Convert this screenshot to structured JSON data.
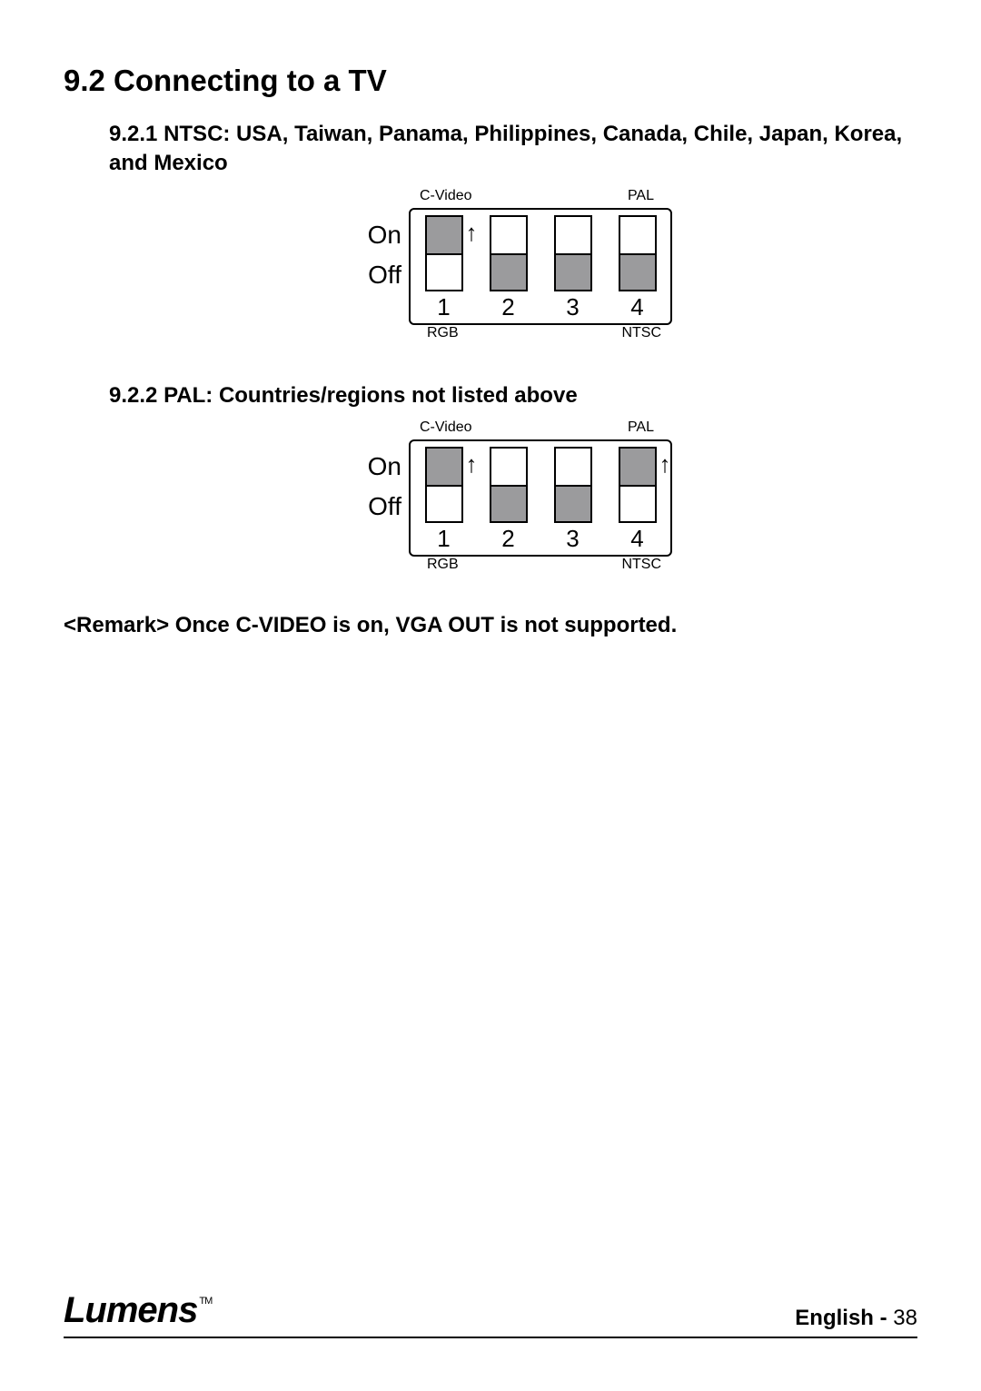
{
  "section": {
    "number": "9.2",
    "title": "Connecting to a TV"
  },
  "subsections": [
    {
      "number": "9.2.1",
      "title": "NTSC: USA, Taiwan, Panama, Philippines, Canada, Chile, Japan, Korea, and Mexico",
      "diagram": {
        "top_left_label": "C-Video",
        "top_right_label": "PAL",
        "side_on": "On",
        "side_off": "Off",
        "bottom_left_label": "RGB",
        "bottom_right_label": "NTSC",
        "switches": [
          {
            "num": "1",
            "position": "on",
            "arrow": true
          },
          {
            "num": "2",
            "position": "off",
            "arrow": false
          },
          {
            "num": "3",
            "position": "off",
            "arrow": false
          },
          {
            "num": "4",
            "position": "off",
            "arrow": false
          }
        ],
        "colors": {
          "fill": "#9b9b9d",
          "border": "#000000",
          "bg": "#ffffff"
        }
      }
    },
    {
      "number": "9.2.2",
      "title": "PAL: Countries/regions not listed above",
      "diagram": {
        "top_left_label": "C-Video",
        "top_right_label": "PAL",
        "side_on": "On",
        "side_off": "Off",
        "bottom_left_label": "RGB",
        "bottom_right_label": "NTSC",
        "switches": [
          {
            "num": "1",
            "position": "on",
            "arrow": true
          },
          {
            "num": "2",
            "position": "off",
            "arrow": false
          },
          {
            "num": "3",
            "position": "off",
            "arrow": false
          },
          {
            "num": "4",
            "position": "on",
            "arrow": true
          }
        ],
        "colors": {
          "fill": "#9b9b9d",
          "border": "#000000",
          "bg": "#ffffff"
        }
      }
    }
  ],
  "remark": "<Remark> Once C-VIDEO is on, VGA OUT is not supported.",
  "footer": {
    "logo": "Lumens",
    "tm": "TM",
    "language": "English",
    "dash": " - ",
    "page": "38"
  }
}
